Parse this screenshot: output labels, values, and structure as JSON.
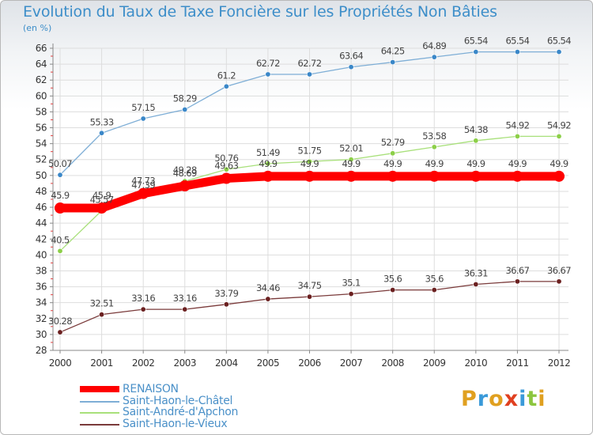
{
  "chart_data": {
    "type": "line",
    "title": "Evolution du Taux de Taxe Foncière sur les Propriétés Non Bâties",
    "subtitle": "(en %)",
    "x": [
      "2000",
      "2001",
      "2002",
      "2003",
      "2004",
      "2005",
      "2006",
      "2007",
      "2008",
      "2009",
      "2010",
      "2011",
      "2012"
    ],
    "ylim": [
      28,
      66
    ],
    "yticks": [
      28,
      30,
      32,
      34,
      36,
      38,
      40,
      42,
      44,
      46,
      48,
      50,
      52,
      54,
      56,
      58,
      60,
      62,
      64,
      66
    ],
    "grid": true,
    "legend_position": "bottom-left",
    "series": [
      {
        "name": "RENAISON",
        "color": "#ff0000",
        "values": [
          45.9,
          45.9,
          47.73,
          48.69,
          49.63,
          49.9,
          49.9,
          49.9,
          49.9,
          49.9,
          49.9,
          49.9,
          49.9
        ],
        "labels": [
          "45.9",
          "45.9",
          "47.73",
          "48.69",
          "49.63",
          "49.9",
          "49.9",
          "49.9",
          "49.9",
          "49.9",
          "49.9",
          "49.9",
          "49.9"
        ]
      },
      {
        "name": "Saint-Haon-le-Châtel",
        "color": "#7eaed6",
        "point_color": "#3a87c8",
        "values": [
          50.07,
          55.33,
          57.15,
          58.29,
          61.2,
          62.72,
          62.72,
          63.64,
          64.25,
          64.89,
          65.54,
          65.54,
          65.54
        ],
        "labels": [
          "50.07",
          "55.33",
          "57.15",
          "58.29",
          "61.2",
          "62.72",
          "62.72",
          "63.64",
          "64.25",
          "64.89",
          "65.54",
          "65.54",
          "65.54"
        ]
      },
      {
        "name": "Saint-André-d'Apchon",
        "color": "#a8e07a",
        "point_color": "#8ccf48",
        "values": [
          40.5,
          45.57,
          47.39,
          49.28,
          50.76,
          51.49,
          51.75,
          52.01,
          52.79,
          53.58,
          54.38,
          54.92,
          54.92
        ],
        "labels": [
          "40.5",
          "45.57",
          "47.39",
          "49.28",
          "50.76",
          "51.49",
          "51.75",
          "52.01",
          "52.79",
          "53.58",
          "54.38",
          "54.92",
          "54.92"
        ]
      },
      {
        "name": "Saint-Haon-le-Vieux",
        "color": "#7a3a3a",
        "point_color": "#6b2020",
        "values": [
          30.28,
          32.51,
          33.16,
          33.16,
          33.79,
          34.46,
          34.75,
          35.1,
          35.6,
          35.6,
          36.31,
          36.67,
          36.67
        ],
        "labels": [
          "30.28",
          "32.51",
          "33.16",
          "33.16",
          "33.79",
          "34.46",
          "34.75",
          "35.1",
          "35.6",
          "35.6",
          "36.31",
          "36.67",
          "36.67"
        ]
      }
    ]
  },
  "logo": {
    "letters": [
      "P",
      "r",
      "o",
      "x",
      "i",
      "t",
      "i"
    ],
    "colors": [
      "#e0a020",
      "#3a9ad9",
      "#e0a020",
      "#e04020",
      "#3a9ad9",
      "#8cc63f",
      "#e0a020"
    ]
  }
}
